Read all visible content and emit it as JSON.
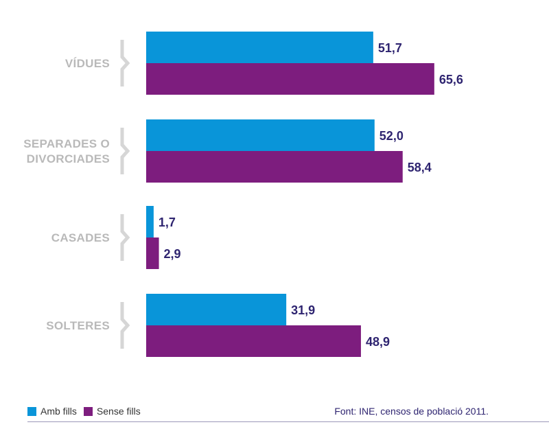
{
  "chart_data": {
    "type": "bar",
    "orientation": "horizontal",
    "categories": [
      "VÍDUES",
      "SEPARADES O DIVORCIADES",
      "CASADES",
      "SOLTERES"
    ],
    "category_lines": [
      [
        "VÍDUES"
      ],
      [
        "SEPARADES O",
        "DIVORCIADES"
      ],
      [
        "CASADES"
      ],
      [
        "SOLTERES"
      ]
    ],
    "series": [
      {
        "name": "Amb fills",
        "color": "#0995d9",
        "values": [
          51.7,
          52.0,
          1.7,
          31.9
        ],
        "labels": [
          "51,7",
          "52,0",
          "1,7",
          "31,9"
        ]
      },
      {
        "name": "Sense fills",
        "color": "#7d1d7e",
        "values": [
          65.6,
          58.4,
          2.9,
          48.9
        ],
        "labels": [
          "65,6",
          "58,4",
          "2,9",
          "48,9"
        ]
      }
    ],
    "xlim": [
      0,
      100
    ],
    "grid": false,
    "legend_position": "bottom-left",
    "value_label_color": "#2e2470",
    "category_label_color": "#b9b9b9"
  },
  "legend": {
    "items": [
      {
        "label": "Amb fills",
        "color": "#0995d9"
      },
      {
        "label": "Sense fills",
        "color": "#7d1d7e"
      }
    ]
  },
  "source": "Font: INE, censos de població 2011."
}
